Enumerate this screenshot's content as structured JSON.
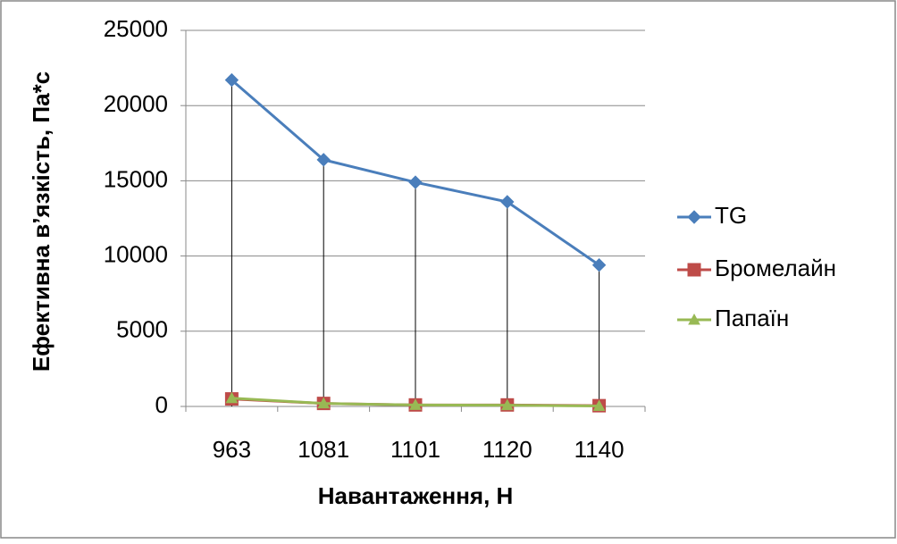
{
  "chart_data": {
    "type": "line",
    "x_label": "Навантаження,  Н",
    "y_label": "Ефективна в’язкість, Па*с",
    "categories": [
      "963",
      "1081",
      "1101",
      "1120",
      "1140"
    ],
    "series": [
      {
        "name": "TG",
        "color": "#4a7ebb",
        "marker": "diamond",
        "values": [
          21700,
          16400,
          14900,
          13600,
          9400
        ]
      },
      {
        "name": "Бромелайн",
        "color": "#be4b48",
        "marker": "square",
        "values": [
          500,
          200,
          100,
          100,
          50
        ]
      },
      {
        "name": "Папаїн",
        "color": "#98b954",
        "marker": "triangle",
        "values": [
          550,
          200,
          100,
          80,
          30
        ]
      }
    ],
    "ylim": [
      0,
      25000
    ],
    "yticks": [
      0,
      5000,
      10000,
      15000,
      20000,
      25000
    ],
    "grid": true,
    "drop_lines": true,
    "legend": "right"
  }
}
